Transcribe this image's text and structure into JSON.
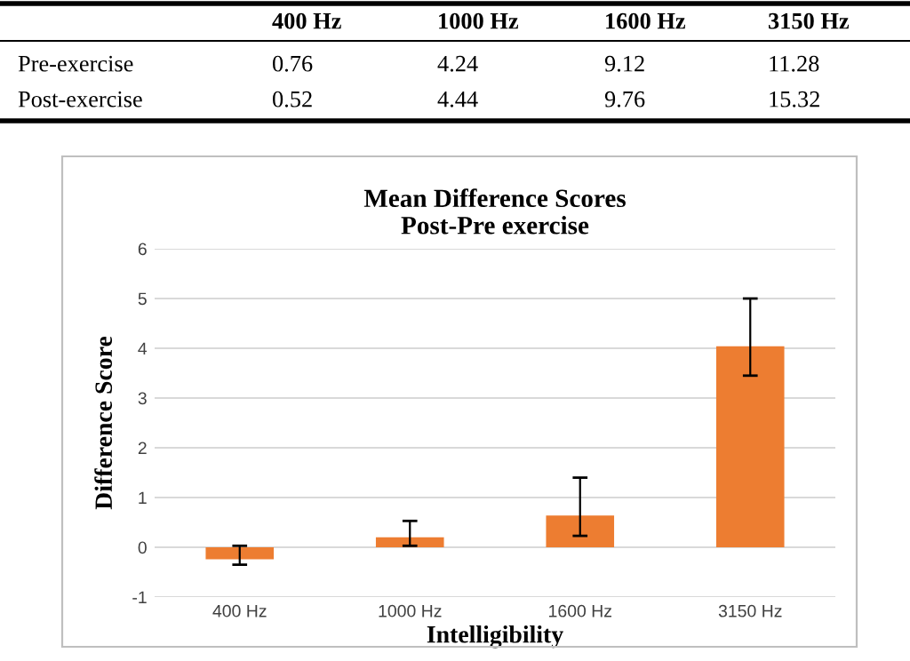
{
  "chart_data": [
    {
      "type": "other",
      "annotations": [
        "400 Hz",
        "1000 Hz",
        "1600 Hz",
        "3150 Hz",
        "Pre-exercise",
        "0.76",
        "4.24",
        "9.12",
        "11.28",
        "Post-exercise",
        "0.52",
        "4.44",
        "9.76",
        "15.32"
      ]
    },
    {
      "type": "bar",
      "title": "Mean Difference Scores\nPost-Pre exercise",
      "xlabel": "Intelligibility",
      "ylabel": "Difference Score",
      "categories": [
        "400 Hz",
        "1000 Hz",
        "1600 Hz",
        "3150 Hz"
      ],
      "values": [
        -0.24,
        0.2,
        0.64,
        4.04
      ],
      "color": "#ed7d31",
      "errors": [
        [
          -0.35,
          0.03
        ],
        [
          0.03,
          0.53
        ],
        [
          0.23,
          1.4
        ],
        [
          3.45,
          5.0
        ]
      ],
      "ylim": [
        -1,
        6
      ],
      "yticks": [
        -1,
        0,
        1,
        2,
        3,
        4,
        5,
        6
      ],
      "grid": "y"
    }
  ]
}
